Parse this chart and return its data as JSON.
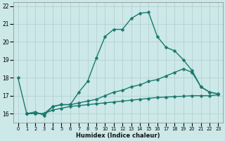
{
  "xlabel": "Humidex (Indice chaleur)",
  "bg_color": "#cce8e8",
  "line_color": "#1a7a6e",
  "grid_color": "#b0cccc",
  "xlim": [
    -0.5,
    23.5
  ],
  "ylim": [
    15.5,
    22.2
  ],
  "xticks": [
    0,
    1,
    2,
    3,
    4,
    5,
    6,
    7,
    8,
    9,
    10,
    11,
    12,
    13,
    14,
    15,
    16,
    17,
    18,
    19,
    20,
    21,
    22,
    23
  ],
  "yticks": [
    16,
    17,
    18,
    19,
    20,
    21,
    22
  ],
  "line1_x": [
    0,
    1,
    2,
    3,
    4,
    5,
    6,
    7,
    8,
    9,
    10,
    11,
    12,
    13,
    14,
    15,
    16,
    17,
    18,
    19,
    20,
    21,
    22,
    23
  ],
  "line1_y": [
    18.0,
    16.0,
    16.1,
    15.9,
    16.4,
    16.5,
    16.5,
    17.2,
    17.8,
    19.1,
    20.3,
    20.7,
    20.7,
    21.3,
    21.6,
    21.65,
    20.3,
    19.7,
    19.5,
    19.0,
    18.4,
    17.5,
    17.2,
    17.1
  ],
  "line2_x": [
    1,
    2,
    3,
    4,
    5,
    6,
    7,
    8,
    9,
    10,
    11,
    12,
    13,
    14,
    15,
    16,
    17,
    18,
    19,
    20,
    21,
    22,
    23
  ],
  "line2_y": [
    16.0,
    16.0,
    16.0,
    16.4,
    16.5,
    16.5,
    16.6,
    16.7,
    16.8,
    17.0,
    17.2,
    17.3,
    17.5,
    17.6,
    17.8,
    17.9,
    18.1,
    18.3,
    18.5,
    18.3,
    17.5,
    17.2,
    17.1
  ],
  "line3_x": [
    1,
    2,
    3,
    4,
    5,
    6,
    7,
    8,
    9,
    10,
    11,
    12,
    13,
    14,
    15,
    16,
    17,
    18,
    19,
    20,
    21,
    22,
    23
  ],
  "line3_y": [
    16.0,
    16.0,
    16.0,
    16.2,
    16.3,
    16.4,
    16.45,
    16.5,
    16.55,
    16.6,
    16.65,
    16.7,
    16.75,
    16.8,
    16.85,
    16.9,
    16.92,
    16.95,
    16.97,
    17.0,
    17.0,
    17.0,
    17.05
  ],
  "marker": "D",
  "markersize": 2.5,
  "linewidth": 1.0
}
